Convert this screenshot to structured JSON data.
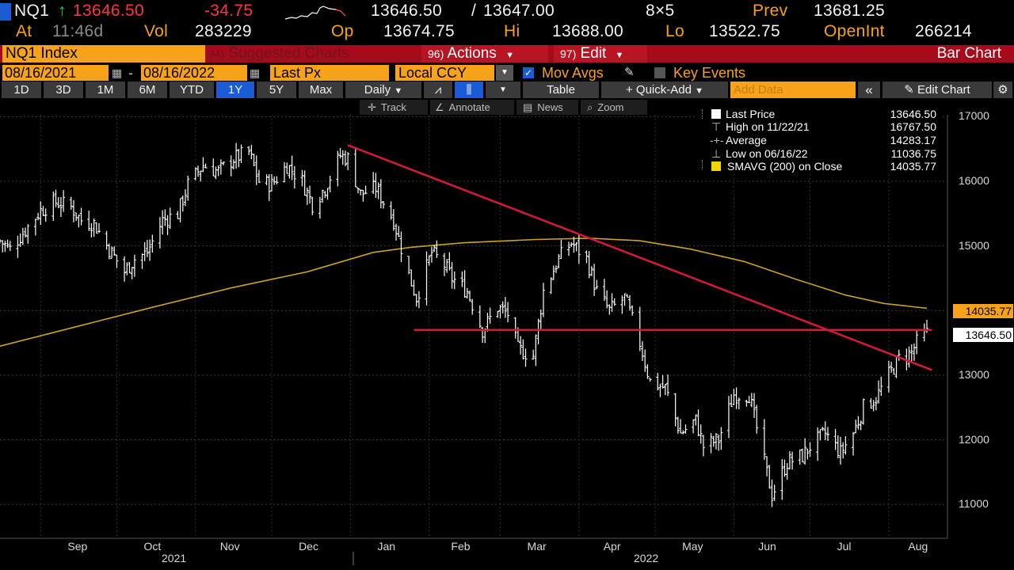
{
  "header": {
    "ticker": "NQ1",
    "last_price": "13646.50",
    "change": "-34.75",
    "bid": "13646.50",
    "ask": "13647.00",
    "size": "8×5",
    "prev_label": "Prev",
    "prev_value": "13681.25",
    "at_label": "At",
    "time": "11:46d",
    "vol_label": "Vol",
    "vol_value": "283229",
    "op_label": "Op",
    "op_value": "13674.75",
    "hi_label": "Hi",
    "hi_value": "13688.00",
    "lo_label": "Lo",
    "lo_value": "13522.75",
    "oi_label": "OpenInt",
    "oi_value": "266214"
  },
  "toolbar": {
    "security": "NQ1 Index",
    "suggested_num": "94)",
    "suggested_label": "Suggested Charts",
    "actions_num": "96)",
    "actions_label": "Actions",
    "edit_num": "97)",
    "edit_label": "Edit",
    "chart_type": "Bar Chart"
  },
  "controls": {
    "start_date": "08/16/2021",
    "end_date": "08/16/2022",
    "price_field": "Last Px",
    "currency": "Local CCY",
    "mov_avgs": "Mov Avgs",
    "key_events": "Key Events"
  },
  "periods": [
    "1D",
    "3D",
    "1M",
    "6M",
    "YTD",
    "1Y",
    "5Y",
    "Max"
  ],
  "selected_period": "1Y",
  "row3": {
    "frequency": "Daily",
    "table": "Table",
    "quick_add": "+ Quick-Add",
    "add_data_placeholder": "Add Data",
    "edit_chart": "Edit Chart"
  },
  "tools": {
    "track": "Track",
    "annotate": "Annotate",
    "news": "News",
    "zoom": "Zoom"
  },
  "legend": [
    {
      "label": "Last Price",
      "value": "13646.50"
    },
    {
      "label": "High on 11/22/21",
      "value": "16767.50"
    },
    {
      "label": "Average",
      "value": "14283.17"
    },
    {
      "label": "Low on 06/16/22",
      "value": "11036.75"
    },
    {
      "label": "SMAVG (200)  on Close",
      "value": "14035.77"
    }
  ],
  "price_tags": {
    "sma": "14035.77",
    "last": "13646.50"
  },
  "colors": {
    "orange": "#f7a21b",
    "trendline": "#d11a35",
    "sma": "#c9a227",
    "bars": "#ffffff",
    "selected_btn": "#1a5bd6"
  },
  "chart_data": {
    "type": "bar",
    "title": "NQ1 Index",
    "frequency": "Daily",
    "date_range": [
      "2021-08-16",
      "2022-08-16"
    ],
    "ylim": [
      10500,
      17250
    ],
    "yticks": [
      11000,
      12000,
      13000,
      14000,
      15000,
      16000,
      17000
    ],
    "x_tick_labels": [
      "Sep",
      "Oct",
      "Nov",
      "Dec",
      "Jan",
      "Feb",
      "Mar",
      "Apr",
      "May",
      "Jun",
      "Jul",
      "Aug"
    ],
    "year_labels": [
      "2021",
      "2022"
    ],
    "close_series": {
      "name": "Last Price",
      "points": [
        [
          "2021-08-16",
          15080
        ],
        [
          "2021-08-20",
          14950
        ],
        [
          "2021-08-26",
          15250
        ],
        [
          "2021-09-01",
          15550
        ],
        [
          "2021-09-07",
          15680
        ],
        [
          "2021-09-13",
          15600
        ],
        [
          "2021-09-17",
          15400
        ],
        [
          "2021-09-22",
          15350
        ],
        [
          "2021-09-28",
          14950
        ],
        [
          "2021-10-04",
          14600
        ],
        [
          "2021-10-08",
          14800
        ],
        [
          "2021-10-13",
          14900
        ],
        [
          "2021-10-19",
          15400
        ],
        [
          "2021-10-25",
          15500
        ],
        [
          "2021-10-29",
          15950
        ],
        [
          "2021-11-04",
          16250
        ],
        [
          "2021-11-10",
          16150
        ],
        [
          "2021-11-16",
          16350
        ],
        [
          "2021-11-22",
          16450
        ],
        [
          "2021-11-26",
          16000
        ],
        [
          "2021-12-01",
          15950
        ],
        [
          "2021-12-07",
          16250
        ],
        [
          "2021-12-13",
          16000
        ],
        [
          "2021-12-17",
          15650
        ],
        [
          "2021-12-22",
          15900
        ],
        [
          "2021-12-28",
          16400
        ],
        [
          "2021-12-31",
          16350
        ],
        [
          "2022-01-05",
          15800
        ],
        [
          "2022-01-11",
          15900
        ],
        [
          "2022-01-18",
          15400
        ],
        [
          "2022-01-24",
          14550
        ],
        [
          "2022-01-27",
          14200
        ],
        [
          "2022-02-02",
          14900
        ],
        [
          "2022-02-07",
          14700
        ],
        [
          "2022-02-10",
          14500
        ],
        [
          "2022-02-16",
          14300
        ],
        [
          "2022-02-22",
          13700
        ],
        [
          "2022-02-28",
          14050
        ],
        [
          "2022-03-04",
          13950
        ],
        [
          "2022-03-08",
          13400
        ],
        [
          "2022-03-14",
          13300
        ],
        [
          "2022-03-18",
          14300
        ],
        [
          "2022-03-24",
          14800
        ],
        [
          "2022-03-29",
          15050
        ],
        [
          "2022-04-04",
          14800
        ],
        [
          "2022-04-08",
          14300
        ],
        [
          "2022-04-13",
          14000
        ],
        [
          "2022-04-19",
          14200
        ],
        [
          "2022-04-25",
          13500
        ],
        [
          "2022-04-29",
          12900
        ],
        [
          "2022-05-05",
          12800
        ],
        [
          "2022-05-11",
          12100
        ],
        [
          "2022-05-17",
          12300
        ],
        [
          "2022-05-20",
          11900
        ],
        [
          "2022-05-26",
          12000
        ],
        [
          "2022-06-01",
          12700
        ],
        [
          "2022-06-07",
          12700
        ],
        [
          "2022-06-13",
          11650
        ],
        [
          "2022-06-16",
          11150
        ],
        [
          "2022-06-22",
          11650
        ],
        [
          "2022-06-28",
          11750
        ],
        [
          "2022-07-01",
          11900
        ],
        [
          "2022-07-07",
          12100
        ],
        [
          "2022-07-13",
          11800
        ],
        [
          "2022-07-18",
          12100
        ],
        [
          "2022-07-22",
          12500
        ],
        [
          "2022-07-27",
          12650
        ],
        [
          "2022-08-01",
          13000
        ],
        [
          "2022-08-05",
          13250
        ],
        [
          "2022-08-10",
          13350
        ],
        [
          "2022-08-12",
          13500
        ],
        [
          "2022-08-16",
          13646.5
        ]
      ]
    },
    "sma_series": {
      "name": "SMAVG (200)  on Close",
      "points": [
        [
          "2021-08-16",
          13450
        ],
        [
          "2021-09-15",
          13750
        ],
        [
          "2021-10-15",
          14050
        ],
        [
          "2021-11-15",
          14350
        ],
        [
          "2021-12-15",
          14600
        ],
        [
          "2022-01-10",
          14900
        ],
        [
          "2022-01-25",
          14980
        ],
        [
          "2022-02-15",
          15050
        ],
        [
          "2022-03-15",
          15100
        ],
        [
          "2022-04-05",
          15120
        ],
        [
          "2022-04-25",
          15080
        ],
        [
          "2022-05-15",
          14950
        ],
        [
          "2022-06-05",
          14760
        ],
        [
          "2022-06-25",
          14490
        ],
        [
          "2022-07-15",
          14240
        ],
        [
          "2022-07-30",
          14110
        ],
        [
          "2022-08-16",
          14035.77
        ]
      ]
    },
    "trendlines": [
      {
        "from": [
          "2021-12-31",
          16560
        ],
        "to": [
          "2022-08-18",
          13080
        ]
      },
      {
        "from": [
          "2022-01-26",
          13700
        ],
        "to": [
          "2022-08-18",
          13700
        ]
      }
    ],
    "grid": true,
    "legend_position": "top-right"
  }
}
